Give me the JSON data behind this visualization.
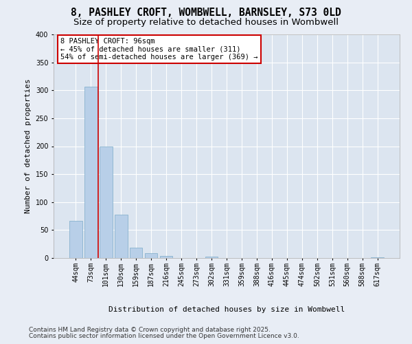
{
  "title_line1": "8, PASHLEY CROFT, WOMBWELL, BARNSLEY, S73 0LD",
  "title_line2": "Size of property relative to detached houses in Wombwell",
  "xlabel": "Distribution of detached houses by size in Wombwell",
  "ylabel": "Number of detached properties",
  "categories": [
    "44sqm",
    "73sqm",
    "101sqm",
    "130sqm",
    "159sqm",
    "187sqm",
    "216sqm",
    "245sqm",
    "273sqm",
    "302sqm",
    "331sqm",
    "359sqm",
    "388sqm",
    "416sqm",
    "445sqm",
    "474sqm",
    "502sqm",
    "531sqm",
    "560sqm",
    "588sqm",
    "617sqm"
  ],
  "values": [
    67,
    307,
    200,
    78,
    18,
    9,
    4,
    0,
    0,
    3,
    0,
    0,
    0,
    0,
    0,
    0,
    0,
    0,
    0,
    0,
    1
  ],
  "bar_color": "#b8cfe8",
  "bar_edgecolor": "#7aaac8",
  "vline_x": 1.5,
  "vline_color": "#cc0000",
  "annotation_text": "8 PASHLEY CROFT: 96sqm\n← 45% of detached houses are smaller (311)\n54% of semi-detached houses are larger (369) →",
  "annotation_box_edgecolor": "#cc0000",
  "annotation_box_facecolor": "#ffffff",
  "ylim": [
    0,
    400
  ],
  "yticks": [
    0,
    50,
    100,
    150,
    200,
    250,
    300,
    350,
    400
  ],
  "background_color": "#e8edf5",
  "plot_background_color": "#dce5f0",
  "grid_color": "#ffffff",
  "footer_line1": "Contains HM Land Registry data © Crown copyright and database right 2025.",
  "footer_line2": "Contains public sector information licensed under the Open Government Licence v3.0.",
  "title_fontsize": 10.5,
  "subtitle_fontsize": 9.5,
  "axis_label_fontsize": 8,
  "tick_fontsize": 7,
  "annotation_fontsize": 7.5,
  "footer_fontsize": 6.5
}
